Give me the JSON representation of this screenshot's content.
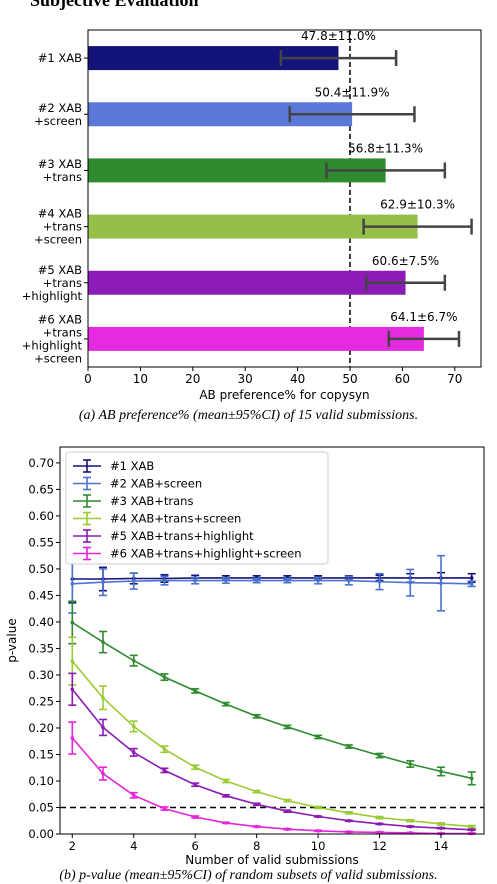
{
  "heading": "Subjective Evaluation",
  "captions": {
    "a": "(a) AB preference% (mean±95%CI) of 15 valid submissions.",
    "b": "(b) p-value (mean±95%CI) of random subsets of valid submissions."
  },
  "chart_data": [
    {
      "type": "bar",
      "orientation": "horizontal",
      "categories": [
        [
          "#1 XAB"
        ],
        [
          "#2 XAB",
          "+screen"
        ],
        [
          "#3 XAB",
          "+trans"
        ],
        [
          "#4 XAB",
          "+trans",
          "+screen"
        ],
        [
          "#5 XAB",
          "+trans",
          "+highlight"
        ],
        [
          "#6 XAB",
          "+trans",
          "+highlight",
          "+screen"
        ]
      ],
      "values": [
        47.8,
        50.4,
        56.8,
        62.9,
        60.6,
        64.1
      ],
      "errors": [
        11.0,
        11.9,
        11.3,
        10.3,
        7.5,
        6.7
      ],
      "labels": [
        "47.8±11.0%",
        "50.4±11.9%",
        "56.8±11.3%",
        "62.9±10.3%",
        "60.6±7.5%",
        "64.1±6.7%"
      ],
      "colors": [
        "#13137a",
        "#5b78d9",
        "#2e8b2e",
        "#96bf4a",
        "#8c1bb8",
        "#e42bdf"
      ],
      "xlabel": "AB preference% for copysyn",
      "xlim": [
        0,
        75
      ],
      "xticks": [
        0,
        10,
        20,
        30,
        40,
        50,
        60,
        70
      ],
      "reference_line": 50
    },
    {
      "type": "line",
      "x": [
        2,
        3,
        4,
        5,
        6,
        7,
        8,
        9,
        10,
        11,
        12,
        13,
        14,
        15
      ],
      "series": [
        {
          "name": "#1 XAB",
          "color": "#13137a",
          "values": [
            0.481,
            0.481,
            0.482,
            0.482,
            0.483,
            0.483,
            0.483,
            0.483,
            0.483,
            0.483,
            0.483,
            0.483,
            0.483,
            0.483
          ],
          "errors": [
            0.045,
            0.022,
            0.01,
            0.007,
            0.005,
            0.004,
            0.004,
            0.004,
            0.004,
            0.004,
            0.005,
            0.008,
            0.01,
            0.008
          ]
        },
        {
          "name": "#2 XAB+screen",
          "color": "#4a74d0",
          "values": [
            0.472,
            0.475,
            0.477,
            0.478,
            0.478,
            0.478,
            0.478,
            0.478,
            0.478,
            0.478,
            0.476,
            0.474,
            0.473,
            0.472
          ],
          "errors": [
            0.055,
            0.025,
            0.015,
            0.008,
            0.006,
            0.005,
            0.004,
            0.004,
            0.006,
            0.008,
            0.015,
            0.025,
            0.052,
            0.005
          ]
        },
        {
          "name": "#3 XAB+trans",
          "color": "#2e8b2e",
          "values": [
            0.399,
            0.362,
            0.327,
            0.296,
            0.27,
            0.245,
            0.222,
            0.202,
            0.183,
            0.165,
            0.148,
            0.132,
            0.118,
            0.105
          ],
          "errors": [
            0.04,
            0.02,
            0.01,
            0.006,
            0.004,
            0.003,
            0.003,
            0.003,
            0.003,
            0.003,
            0.004,
            0.006,
            0.008,
            0.012
          ]
        },
        {
          "name": "#4 XAB+trans+screen",
          "color": "#99cc33",
          "values": [
            0.326,
            0.257,
            0.203,
            0.16,
            0.126,
            0.1,
            0.08,
            0.063,
            0.05,
            0.04,
            0.031,
            0.025,
            0.019,
            0.014
          ],
          "errors": [
            0.045,
            0.022,
            0.01,
            0.006,
            0.004,
            0.003,
            0.002,
            0.002,
            0.002,
            0.002,
            0.002,
            0.002,
            0.002,
            0.002
          ]
        },
        {
          "name": "#5 XAB+trans+highlight",
          "color": "#8a1cb5",
          "values": [
            0.273,
            0.201,
            0.154,
            0.12,
            0.093,
            0.072,
            0.056,
            0.043,
            0.033,
            0.025,
            0.019,
            0.014,
            0.011,
            0.008
          ],
          "errors": [
            0.03,
            0.015,
            0.007,
            0.004,
            0.003,
            0.002,
            0.002,
            0.002,
            0.001,
            0.001,
            0.001,
            0.001,
            0.001,
            0.001
          ]
        },
        {
          "name": "#6 XAB+trans+highlight+screen",
          "color": "#e524dc",
          "values": [
            0.181,
            0.114,
            0.073,
            0.048,
            0.032,
            0.021,
            0.014,
            0.009,
            0.006,
            0.004,
            0.003,
            0.002,
            0.001,
            0.001
          ],
          "errors": [
            0.03,
            0.012,
            0.005,
            0.003,
            0.002,
            0.001,
            0.001,
            0.001,
            0.001,
            0.001,
            0.001,
            0.001,
            0.001,
            0.001
          ]
        }
      ],
      "xlabel": "Number of valid submissions",
      "ylabel": "p-value",
      "xlim": [
        1.6,
        15.4
      ],
      "ylim": [
        0,
        0.73
      ],
      "xticks": [
        2,
        4,
        6,
        8,
        10,
        12,
        14
      ],
      "yticks": [
        0.0,
        0.05,
        0.1,
        0.15,
        0.2,
        0.25,
        0.3,
        0.35,
        0.4,
        0.45,
        0.5,
        0.55,
        0.6,
        0.65,
        0.7
      ],
      "ytick_labels": [
        "0.00",
        "0.05",
        "0.10",
        "0.15",
        "0.20",
        "0.25",
        "0.30",
        "0.35",
        "0.40",
        "0.45",
        "0.50",
        "0.55",
        "0.60",
        "0.65",
        "0.70"
      ],
      "reference_line": 0.05,
      "legend_position": "top-left"
    }
  ]
}
